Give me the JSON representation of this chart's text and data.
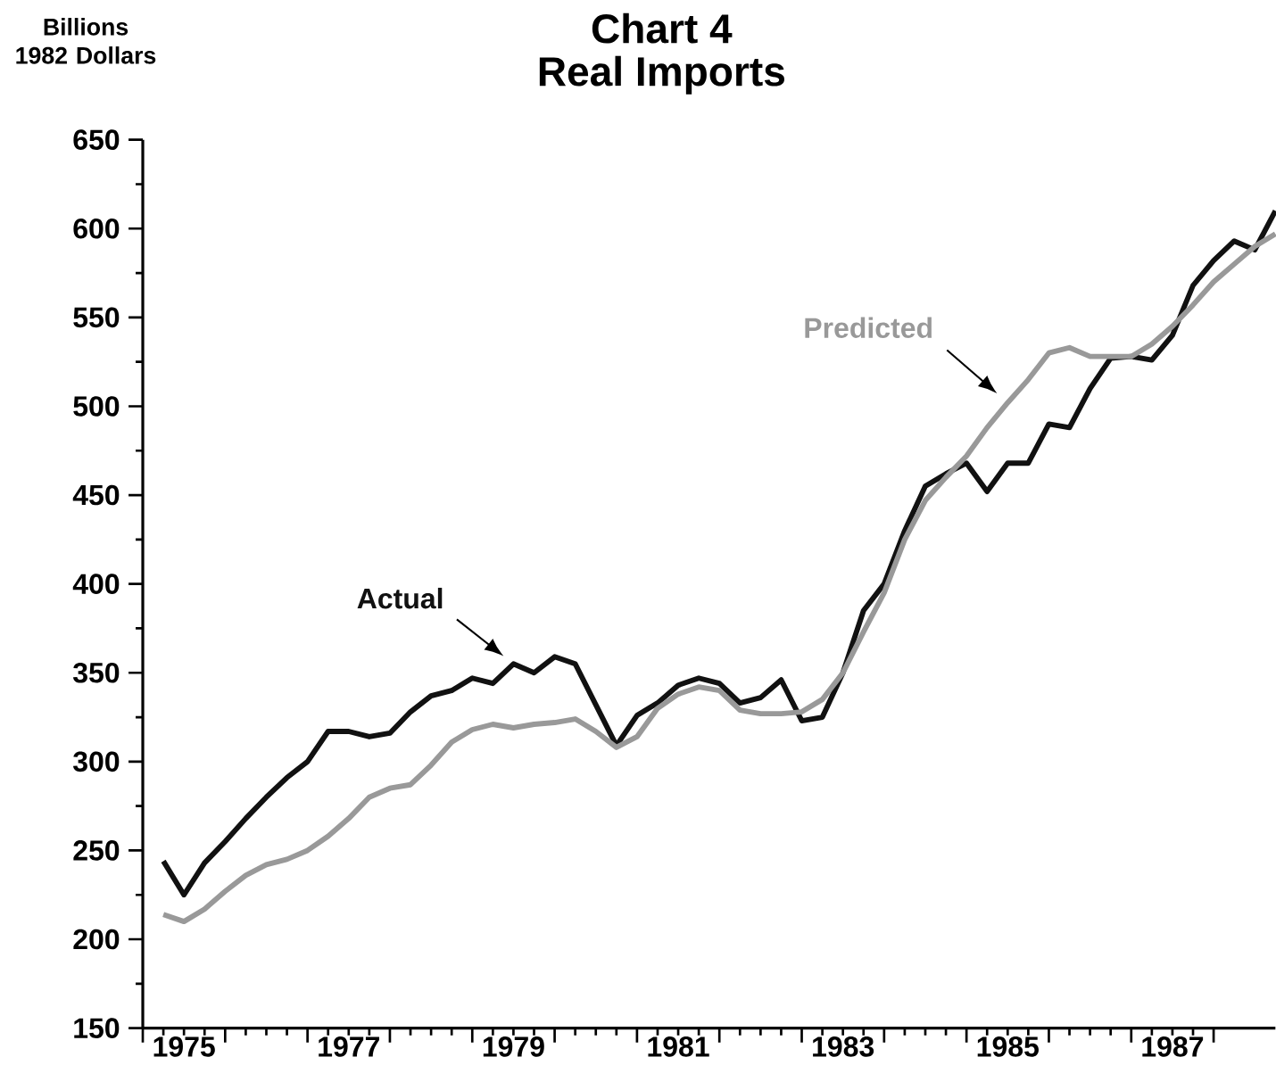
{
  "chart_data": {
    "type": "line",
    "title": "Chart 4",
    "subtitle": "Real Imports",
    "ylabel": "Billions 1982 Dollars",
    "xlim": [
      1975,
      1988.75
    ],
    "ylim": [
      150,
      650
    ],
    "xticks": [
      {
        "value": 1975,
        "label": null
      },
      {
        "value": 1975.5,
        "label": "1975"
      },
      {
        "value": 1976,
        "label": null
      },
      {
        "value": 1977,
        "label": null
      },
      {
        "value": 1977.5,
        "label": "1977"
      },
      {
        "value": 1978,
        "label": null
      },
      {
        "value": 1979,
        "label": null
      },
      {
        "value": 1979.5,
        "label": "1979"
      },
      {
        "value": 1980,
        "label": null
      },
      {
        "value": 1981,
        "label": null
      },
      {
        "value": 1981.5,
        "label": "1981"
      },
      {
        "value": 1982,
        "label": null
      },
      {
        "value": 1983,
        "label": null
      },
      {
        "value": 1983.5,
        "label": "1983"
      },
      {
        "value": 1984,
        "label": null
      },
      {
        "value": 1985,
        "label": null
      },
      {
        "value": 1985.5,
        "label": "1985"
      },
      {
        "value": 1986,
        "label": null
      },
      {
        "value": 1987,
        "label": null
      },
      {
        "value": 1987.5,
        "label": "1987"
      },
      {
        "value": 1988,
        "label": null
      }
    ],
    "yticks": [
      150,
      200,
      250,
      300,
      350,
      400,
      450,
      500,
      550,
      600,
      650
    ],
    "x": [
      1975.25,
      1975.5,
      1975.75,
      1976.0,
      1976.25,
      1976.5,
      1976.75,
      1977.0,
      1977.25,
      1977.5,
      1977.75,
      1978.0,
      1978.25,
      1978.5,
      1978.75,
      1979.0,
      1979.25,
      1979.5,
      1979.75,
      1980.0,
      1980.25,
      1980.5,
      1980.75,
      1981.0,
      1981.25,
      1981.5,
      1981.75,
      1982.0,
      1982.25,
      1982.5,
      1982.75,
      1983.0,
      1983.25,
      1983.5,
      1983.75,
      1984.0,
      1984.25,
      1984.5,
      1984.75,
      1985.0,
      1985.25,
      1985.5,
      1985.75,
      1986.0,
      1986.25,
      1986.5,
      1986.75,
      1987.0,
      1987.25,
      1987.5,
      1987.75,
      1988.0,
      1988.25,
      1988.5,
      1988.75
    ],
    "series": [
      {
        "name": "Actual",
        "color": "#111111",
        "values": [
          244,
          225,
          243,
          255,
          268,
          280,
          291,
          300,
          317,
          317,
          314,
          316,
          328,
          337,
          340,
          347,
          344,
          355,
          350,
          359,
          355,
          332,
          309,
          326,
          333,
          343,
          347,
          344,
          333,
          336,
          346,
          323,
          325,
          350,
          385,
          400,
          430,
          455,
          462,
          468,
          452,
          468,
          468,
          490,
          488,
          510,
          527,
          528,
          526,
          540,
          568,
          582,
          593,
          588,
          610
        ]
      },
      {
        "name": "Predicted",
        "color": "#999999",
        "values": [
          214,
          210,
          217,
          227,
          236,
          242,
          245,
          250,
          258,
          268,
          280,
          285,
          287,
          298,
          311,
          318,
          321,
          319,
          321,
          322,
          324,
          317,
          308,
          314,
          330,
          338,
          342,
          340,
          329,
          327,
          327,
          328,
          335,
          350,
          373,
          395,
          425,
          447,
          460,
          472,
          488,
          502,
          515,
          530,
          533,
          528,
          528,
          528,
          535,
          545,
          557,
          570,
          580,
          590,
          597
        ]
      }
    ],
    "grid": false,
    "legend": false,
    "marker": "none",
    "line_style": "solid"
  }
}
